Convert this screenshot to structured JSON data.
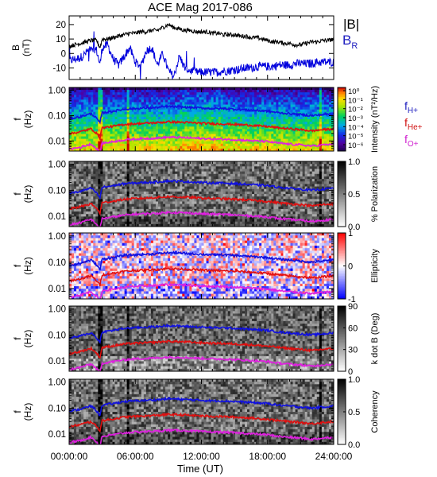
{
  "chart_data": {
    "type": "multi-panel spectrogram",
    "title": "ACE Mag 2017-086",
    "xlabel": "Time (UT)",
    "x_ticks": [
      "00:00:00",
      "06:00:00",
      "12:00:00",
      "18:00:00",
      "24:00:00"
    ],
    "x_range_hours": [
      0,
      24
    ],
    "line_panel": {
      "ylabel": "B\n(nT)",
      "ylim": [
        -18,
        26
      ],
      "y_ticks": [
        "20",
        "10",
        "0",
        "-10"
      ],
      "y_tick_values": [
        20,
        10,
        0,
        -10
      ],
      "series": [
        {
          "name": "|B|",
          "color": "#000000",
          "x_hours": [
            0.0,
            0.5,
            1.0,
            1.5,
            2.0,
            2.5,
            2.8,
            3.0,
            3.5,
            4.0,
            4.5,
            5.0,
            5.5,
            6.0,
            6.5,
            7.0,
            7.5,
            8.0,
            8.5,
            9.0,
            9.5,
            10.0,
            10.5,
            11.0,
            11.5,
            12.0,
            12.5,
            13.0,
            13.5,
            14.0,
            14.5,
            15.0,
            15.5,
            16.0,
            16.5,
            17.0,
            17.5,
            18.0,
            18.5,
            19.0,
            19.5,
            20.0,
            20.5,
            21.0,
            21.5,
            22.0,
            22.5,
            23.0,
            23.5,
            24.0
          ],
          "values": [
            5,
            6,
            7,
            8,
            9,
            9,
            4,
            10,
            10,
            11,
            12,
            13,
            14,
            14,
            15,
            15,
            16,
            16,
            18,
            20,
            18,
            17,
            16,
            16,
            15,
            15,
            15,
            14,
            14,
            13,
            13,
            13,
            12,
            12,
            11,
            11,
            10,
            9,
            8,
            8,
            7,
            7,
            6,
            6,
            7,
            8,
            8,
            9,
            9,
            10
          ]
        },
        {
          "name": "B_R",
          "color": "#0000dd",
          "x_hours": [
            0.0,
            0.5,
            1.0,
            1.5,
            2.0,
            2.5,
            2.8,
            3.0,
            3.5,
            4.0,
            4.5,
            5.0,
            5.5,
            6.0,
            6.5,
            7.0,
            7.5,
            8.0,
            8.5,
            9.0,
            9.5,
            10.0,
            10.5,
            11.0,
            11.5,
            12.0,
            12.5,
            13.0,
            13.5,
            14.0,
            14.5,
            15.0,
            15.5,
            16.0,
            16.5,
            17.0,
            17.5,
            18.0,
            18.5,
            19.0,
            19.5,
            20.0,
            20.5,
            21.0,
            21.5,
            22.0,
            22.5,
            23.0,
            23.5,
            24.0
          ],
          "values": [
            -5,
            -4,
            -3,
            0,
            5,
            2,
            -8,
            4,
            6,
            -4,
            -8,
            -2,
            4,
            -6,
            -9,
            2,
            4,
            -8,
            0,
            -12,
            -16,
            -2,
            -10,
            -12,
            -13,
            -13,
            -13,
            -13,
            -13,
            -12,
            -12,
            -11,
            -11,
            -10,
            -10,
            -9,
            -9,
            -9,
            -9,
            -8,
            -8,
            -8,
            -7,
            -7,
            -7,
            -7,
            -6,
            -6,
            -6,
            -6
          ]
        }
      ]
    },
    "spectrogram_panels": [
      {
        "name": "Intensity",
        "colorbar_label": "Intensity (nT²/Hz)",
        "colormap": "rainbow",
        "colorbar_ticks": [
          "10⁰",
          "10⁻¹",
          "10⁻²",
          "10⁻³",
          "10⁻⁴",
          "10⁻⁵",
          "10⁻⁶"
        ],
        "ion_labels": [
          {
            "text": "fH+",
            "color": "#2020c0"
          },
          {
            "text": "fHe+",
            "color": "#d01010"
          },
          {
            "text": "fO+",
            "color": "#d020d0"
          }
        ]
      },
      {
        "name": "Polarization",
        "colorbar_label": "% Polarization",
        "colormap": "gray",
        "colorbar_ticks": [
          "1.0",
          "0.5",
          "0.0"
        ]
      },
      {
        "name": "Ellipticity",
        "colorbar_label": "Ellipticity",
        "colormap": "bwr",
        "colorbar_ticks": [
          "1",
          "0",
          "-1"
        ]
      },
      {
        "name": "k dot B",
        "colorbar_label": "k dot B (Deg)",
        "colormap": "gray",
        "colorbar_ticks": [
          "90",
          "60",
          "30",
          "0"
        ]
      },
      {
        "name": "Coherency",
        "colorbar_label": "Coherency",
        "colormap": "gray",
        "colorbar_ticks": [
          "1.0",
          "0.5",
          "0.0"
        ]
      }
    ],
    "spectrogram_ylabel": "f\n(Hz)",
    "spectrogram_y_ticks": [
      "1.00",
      "0.10",
      "0.01"
    ],
    "spectrogram_y_tick_values": [
      1.0,
      0.1,
      0.01
    ],
    "spectrogram_ylim_hz": [
      0.004,
      1.3
    ],
    "y_scale": "log",
    "gyrofrequency_lines": [
      {
        "name": "fH+",
        "color": "#1010e0",
        "x_hours": [
          0,
          1,
          2,
          2.8,
          3,
          4,
          5,
          6,
          7,
          8,
          9,
          10,
          11,
          12,
          13,
          14,
          15,
          16,
          17,
          18,
          19,
          20,
          21,
          22,
          23,
          24
        ],
        "values_hz": [
          0.075,
          0.09,
          0.12,
          0.05,
          0.13,
          0.15,
          0.18,
          0.19,
          0.2,
          0.21,
          0.23,
          0.22,
          0.21,
          0.2,
          0.19,
          0.19,
          0.18,
          0.17,
          0.16,
          0.15,
          0.13,
          0.12,
          0.11,
          0.1,
          0.11,
          0.12
        ]
      },
      {
        "name": "fHe+",
        "color": "#e01010",
        "x_hours": [
          0,
          1,
          2,
          2.8,
          3,
          4,
          5,
          6,
          7,
          8,
          9,
          10,
          11,
          12,
          13,
          14,
          15,
          16,
          17,
          18,
          19,
          20,
          21,
          22,
          23,
          24
        ],
        "values_hz": [
          0.019,
          0.023,
          0.03,
          0.013,
          0.033,
          0.038,
          0.045,
          0.048,
          0.05,
          0.053,
          0.057,
          0.055,
          0.053,
          0.05,
          0.048,
          0.047,
          0.045,
          0.043,
          0.04,
          0.037,
          0.033,
          0.03,
          0.028,
          0.025,
          0.028,
          0.03
        ]
      },
      {
        "name": "fO+",
        "color": "#e020e0",
        "x_hours": [
          0,
          1,
          2,
          2.8,
          3,
          4,
          5,
          6,
          7,
          8,
          9,
          10,
          11,
          12,
          13,
          14,
          15,
          16,
          17,
          18,
          19,
          20,
          21,
          22,
          23,
          24
        ],
        "values_hz": [
          0.0047,
          0.0056,
          0.0075,
          0.0033,
          0.0081,
          0.0094,
          0.011,
          0.012,
          0.0125,
          0.013,
          0.014,
          0.0138,
          0.0132,
          0.0125,
          0.012,
          0.0118,
          0.0112,
          0.0106,
          0.01,
          0.0094,
          0.0082,
          0.0075,
          0.007,
          0.0063,
          0.007,
          0.0075
        ]
      }
    ],
    "legend": [
      {
        "text": "|B|",
        "color": "#000000"
      },
      {
        "text": "B",
        "sub": "R",
        "color": "#2020c0"
      }
    ]
  }
}
